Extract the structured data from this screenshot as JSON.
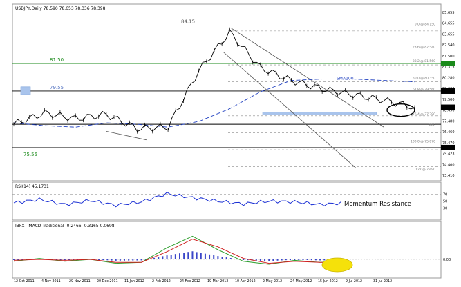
{
  "window": {
    "symbol_header": "USDJPY,Daily  78.590 78.653 78.336 78.398"
  },
  "colors": {
    "price": "#000000",
    "sma": "#2040c0",
    "green_level": "#1a8a1a",
    "blue_box": "#a9c4ec",
    "rsi_line": "#1a2fd4",
    "macd_hist": "#3a46c8",
    "macd_main": "#30a030",
    "macd_signal": "#d02020",
    "highlight_yellow": "#f5e10a",
    "channel": "#555555",
    "fib": "#888888"
  },
  "chart_data": [
    {
      "type": "line",
      "name": "price-panel",
      "title": "USDJPY,Daily  78.590 78.653 78.336 78.398",
      "x": [
        "12 Oct 2011",
        "4 Nov 2011",
        "29 Nov 2011",
        "20 Dec 2011",
        "11 Jan 2012",
        "2 Feb 2012",
        "24 Feb 2012",
        "19 Mar 2012",
        "10 Apr 2012",
        "2 May 2012",
        "24 May 2012",
        "15 Jun 2012",
        "9 Jul 2012",
        "31 Jul 2012"
      ],
      "series": [
        {
          "name": "USDJPY",
          "values": [
            77.2,
            78.0,
            77.6,
            77.9,
            76.9,
            77.0,
            81.0,
            83.7,
            81.2,
            80.3,
            79.7,
            79.3,
            78.9,
            78.4
          ]
        },
        {
          "name": "SMA100",
          "values": [
            77.3,
            77.1,
            77.0,
            77.3,
            77.2,
            77.0,
            77.4,
            78.3,
            79.5,
            80.3,
            80.4,
            80.4,
            80.3,
            80.2
          ]
        }
      ],
      "ylim": [
        73.4,
        85.6
      ],
      "right_axis_ticks": [
        "85.655",
        "84.655",
        "83.655",
        "82.540",
        "81.500",
        "81.315",
        "80.280",
        "79.600",
        "79.500",
        "78.490",
        "77.480",
        "76.460",
        "75.470",
        "75.423",
        "74.400",
        "73.410"
      ],
      "price_labels": [
        "84.15",
        "81.50",
        "79.55",
        "75.55"
      ],
      "indicator_label": "SMA100",
      "fib_labels": [
        "0.0 @ 84.150",
        "23.6 @ 82.540",
        "38.2 @ 81.560",
        "50.0 @ 80.350",
        "61.8 @ 79.560",
        "76.4 @ 77.790",
        "88.6",
        "100.0 @ 75.870",
        "127 @ 73.90"
      ],
      "grid": false
    },
    {
      "type": "line",
      "name": "rsi-panel",
      "title": "RSI(14) 45.1731",
      "annotation": "Momentum Resistance",
      "series": [
        {
          "name": "RSI(14)",
          "values": [
            45,
            55,
            40,
            52,
            38,
            48,
            72,
            60,
            50,
            42,
            50,
            48,
            40,
            45
          ]
        }
      ],
      "ylim": [
        0,
        100
      ],
      "levels": [
        "70",
        "50",
        "30"
      ]
    },
    {
      "type": "bar",
      "name": "macd-panel",
      "title": "IBFX - MACD Traditional -0.2466 -0.3165 0.0698",
      "series": [
        {
          "name": "MACD",
          "values": [
            -0.2,
            0.1,
            -0.2,
            0.0,
            -0.4,
            -0.3,
            1.2,
            2.4,
            1.0,
            -0.2,
            -0.5,
            -0.1,
            -0.3,
            -0.2
          ]
        },
        {
          "name": "Signal",
          "values": [
            -0.1,
            0.0,
            -0.1,
            0.0,
            -0.3,
            -0.3,
            0.8,
            2.1,
            1.3,
            0.1,
            -0.4,
            -0.2,
            -0.3,
            -0.3
          ]
        }
      ],
      "zero_label": "0.00"
    }
  ]
}
